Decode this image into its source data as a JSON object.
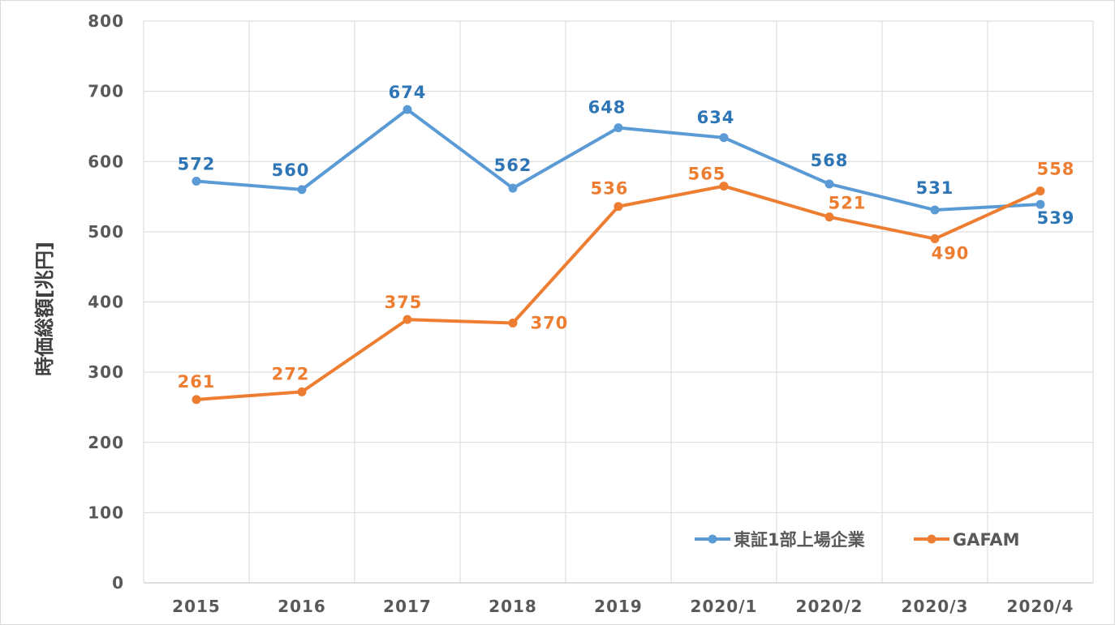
{
  "chart_data": {
    "type": "line",
    "title": "",
    "xlabel": "",
    "ylabel": "時価総額[兆円]",
    "ylim": [
      0,
      800
    ],
    "yticks": [
      0,
      100,
      200,
      300,
      400,
      500,
      600,
      700,
      800
    ],
    "categories": [
      "2015",
      "2016",
      "2017",
      "2018",
      "2019",
      "2020/1",
      "2020/2",
      "2020/3",
      "2020/4"
    ],
    "grid": true,
    "legend_position": "bottom-right",
    "series": [
      {
        "name": "東証1部上場企業",
        "color": "#5B9BD5",
        "label_color": "#2E75B6",
        "values": [
          572,
          560,
          674,
          562,
          648,
          634,
          568,
          531,
          539
        ]
      },
      {
        "name": "GAFAM",
        "color": "#ED7D31",
        "label_color": "#ED7D31",
        "values": [
          261,
          272,
          375,
          370,
          536,
          565,
          521,
          490,
          558
        ]
      }
    ]
  }
}
